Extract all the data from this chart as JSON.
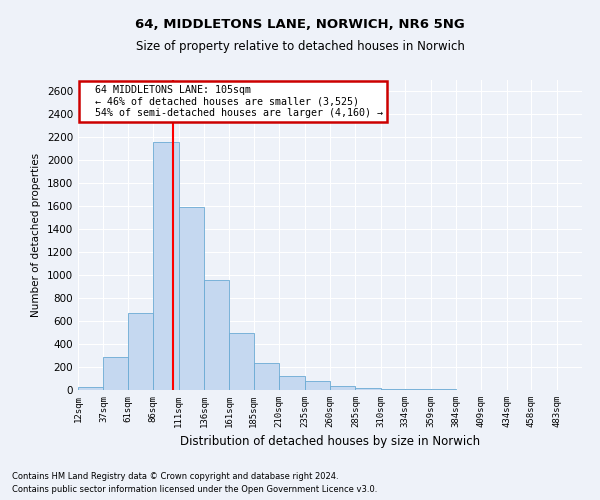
{
  "title1": "64, MIDDLETONS LANE, NORWICH, NR6 5NG",
  "title2": "Size of property relative to detached houses in Norwich",
  "xlabel": "Distribution of detached houses by size in Norwich",
  "ylabel": "Number of detached properties",
  "footnote1": "Contains HM Land Registry data © Crown copyright and database right 2024.",
  "footnote2": "Contains public sector information licensed under the Open Government Licence v3.0.",
  "annotation_line1": "64 MIDDLETONS LANE: 105sqm",
  "annotation_line2": "← 46% of detached houses are smaller (3,525)",
  "annotation_line3": "54% of semi-detached houses are larger (4,160) →",
  "bar_color": "#c5d8f0",
  "bar_edge_color": "#6aaad4",
  "red_line_x": 105,
  "bin_edges": [
    12,
    37,
    61,
    86,
    111,
    136,
    161,
    185,
    210,
    235,
    260,
    285,
    310,
    334,
    359,
    384,
    409,
    434,
    458,
    483,
    508
  ],
  "bar_heights": [
    22,
    290,
    670,
    2160,
    1590,
    960,
    500,
    235,
    120,
    80,
    38,
    15,
    10,
    8,
    5,
    4,
    3,
    2,
    4,
    2
  ],
  "ylim": [
    0,
    2700
  ],
  "yticks": [
    0,
    200,
    400,
    600,
    800,
    1000,
    1200,
    1400,
    1600,
    1800,
    2000,
    2200,
    2400,
    2600
  ],
  "bg_color": "#eef2f9",
  "grid_color": "#ffffff",
  "annotation_box_color": "#ffffff",
  "annotation_box_edge": "#cc0000"
}
